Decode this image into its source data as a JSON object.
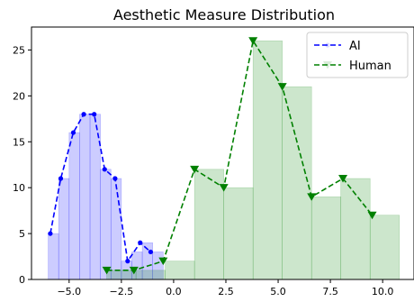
{
  "chart_data": {
    "type": "line",
    "title": "Aesthetic Measure Distribution",
    "xlabel": "",
    "ylabel": "",
    "xlim": [
      -6.8,
      11.5
    ],
    "ylim": [
      0,
      27.5
    ],
    "xticks": [
      -5.0,
      -2.5,
      0.0,
      2.5,
      5.0,
      7.5,
      10.0
    ],
    "xtick_labels": [
      "−5.0",
      "−2.5",
      "0.0",
      "2.5",
      "5.0",
      "7.5",
      "10.0"
    ],
    "yticks": [
      0,
      5,
      10,
      15,
      20,
      25
    ],
    "ytick_labels": [
      "0",
      "5",
      "10",
      "15",
      "20",
      "25"
    ],
    "grid": false,
    "legend_position": "top-right",
    "histograms": [
      {
        "name": "AI",
        "color": "#0000ff",
        "bars": [
          {
            "x0": -6.0,
            "x1": -5.5,
            "y": 5
          },
          {
            "x0": -5.5,
            "x1": -5.0,
            "y": 11
          },
          {
            "x0": -5.0,
            "x1": -4.5,
            "y": 16
          },
          {
            "x0": -4.5,
            "x1": -4.0,
            "y": 18
          },
          {
            "x0": -4.0,
            "x1": -3.5,
            "y": 18
          },
          {
            "x0": -3.5,
            "x1": -3.0,
            "y": 12
          },
          {
            "x0": -3.0,
            "x1": -2.5,
            "y": 11
          },
          {
            "x0": -2.5,
            "x1": -2.0,
            "y": 2
          },
          {
            "x0": -2.0,
            "x1": -1.5,
            "y": 3
          },
          {
            "x0": -1.5,
            "x1": -1.0,
            "y": 4
          },
          {
            "x0": -1.0,
            "x1": -0.5,
            "y": 3
          }
        ]
      },
      {
        "name": "Human",
        "color": "#008000",
        "bars": [
          {
            "x0": -3.2,
            "x1": -1.8,
            "y": 1
          },
          {
            "x0": -1.8,
            "x1": -0.4,
            "y": 1
          },
          {
            "x0": -0.4,
            "x1": 1.0,
            "y": 2
          },
          {
            "x0": 1.0,
            "x1": 2.4,
            "y": 12
          },
          {
            "x0": 2.4,
            "x1": 3.8,
            "y": 10
          },
          {
            "x0": 3.8,
            "x1": 5.2,
            "y": 26
          },
          {
            "x0": 5.2,
            "x1": 6.6,
            "y": 21
          },
          {
            "x0": 6.6,
            "x1": 8.0,
            "y": 9
          },
          {
            "x0": 8.0,
            "x1": 9.4,
            "y": 11
          },
          {
            "x0": 9.4,
            "x1": 10.8,
            "y": 7
          }
        ]
      }
    ],
    "series": [
      {
        "name": "AI",
        "color": "#0000ff",
        "marker": "circle",
        "line_style": "dashed",
        "x": [
          -5.9,
          -5.4,
          -4.8,
          -4.3,
          -3.8,
          -3.3,
          -2.8,
          -2.2,
          -1.6,
          -1.1
        ],
        "y": [
          5,
          11,
          16,
          18,
          18,
          12,
          11,
          2,
          4,
          3
        ]
      },
      {
        "name": "Human",
        "color": "#008000",
        "marker": "triangle-down",
        "line_style": "dashed",
        "x": [
          -3.2,
          -1.9,
          -0.5,
          1.0,
          2.4,
          3.8,
          5.2,
          6.6,
          8.1,
          9.5
        ],
        "y": [
          1,
          1,
          2,
          12,
          10,
          26,
          21,
          9,
          11,
          7
        ]
      }
    ]
  }
}
